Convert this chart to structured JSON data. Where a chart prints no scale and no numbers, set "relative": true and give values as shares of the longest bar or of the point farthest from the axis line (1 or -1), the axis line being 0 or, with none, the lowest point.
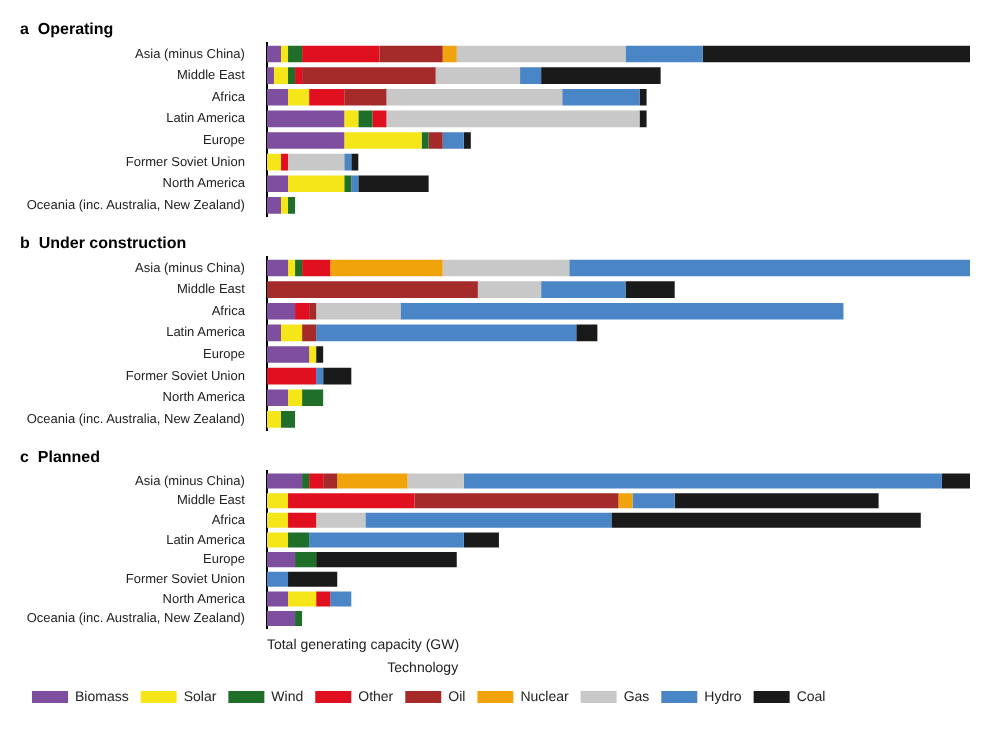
{
  "chart_data": [
    {
      "type": "bar",
      "title": "a  Operating",
      "orientation": "horizontal",
      "stacked": true,
      "relative": true,
      "legend": false,
      "categories": [
        "Asia (minus China)",
        "Middle East",
        "Africa",
        "Latin America",
        "Europe",
        "Former Soviet Union",
        "North America",
        "Oceania (inc. Australia, New Zealand)"
      ],
      "series": [
        {
          "color": "#7f4f9f",
          "values": [
            0.02,
            0.01,
            0.03,
            0.11,
            0.11,
            null,
            0.03,
            0.02
          ]
        },
        {
          "color": "#f5e61a",
          "values": [
            0.01,
            0.02,
            0.03,
            0.02,
            0.11,
            0.02,
            0.08,
            0.01
          ]
        },
        {
          "color": "#1f6e2a",
          "values": [
            0.02,
            0.01,
            null,
            0.02,
            0.01,
            null,
            0.01,
            0.01
          ]
        },
        {
          "color": "#e01020",
          "values": [
            0.11,
            0.01,
            0.05,
            0.02,
            null,
            0.01,
            null,
            null
          ]
        },
        {
          "color": "#a52a2a",
          "values": [
            0.09,
            0.19,
            0.06,
            null,
            0.02,
            null,
            null,
            null
          ]
        },
        {
          "color": "#f0a30a",
          "values": [
            0.02,
            null,
            null,
            null,
            null,
            null,
            null,
            null
          ]
        },
        {
          "color": "#c8c8c8",
          "values": [
            0.24,
            0.12,
            0.25,
            0.36,
            null,
            0.08,
            null,
            null
          ]
        },
        {
          "color": "#4a86c5",
          "values": [
            0.11,
            0.03,
            0.11,
            null,
            0.03,
            0.01,
            0.01,
            null
          ]
        },
        {
          "color": "#1a1a1a",
          "values": [
            0.38,
            0.17,
            0.01,
            0.01,
            0.01,
            0.01,
            0.1,
            null
          ]
        }
      ]
    },
    {
      "type": "bar",
      "title": "b  Under construction",
      "orientation": "horizontal",
      "stacked": true,
      "relative": true,
      "legend": false,
      "categories": [
        "Asia (minus China)",
        "Middle East",
        "Africa",
        "Latin America",
        "Europe",
        "Former Soviet Union",
        "North America",
        "Oceania (inc. Australia, New Zealand)"
      ],
      "series": [
        {
          "color": "#7f4f9f",
          "values": [
            0.03,
            null,
            0.04,
            0.02,
            0.06,
            null,
            0.03,
            null
          ]
        },
        {
          "color": "#f5e61a",
          "values": [
            0.01,
            null,
            null,
            0.03,
            0.01,
            null,
            0.02,
            0.02
          ]
        },
        {
          "color": "#1f6e2a",
          "values": [
            0.01,
            null,
            null,
            null,
            null,
            null,
            0.03,
            0.02
          ]
        },
        {
          "color": "#e01020",
          "values": [
            0.04,
            null,
            0.02,
            null,
            null,
            0.07,
            null,
            null
          ]
        },
        {
          "color": "#a52a2a",
          "values": [
            null,
            0.3,
            0.01,
            0.02,
            null,
            null,
            null,
            null
          ]
        },
        {
          "color": "#f0a30a",
          "values": [
            0.16,
            null,
            null,
            null,
            null,
            null,
            null,
            null
          ]
        },
        {
          "color": "#c8c8c8",
          "values": [
            0.18,
            0.09,
            0.12,
            null,
            null,
            null,
            null,
            null
          ]
        },
        {
          "color": "#4a86c5",
          "values": [
            0.57,
            0.12,
            0.63,
            0.37,
            null,
            0.01,
            null,
            null
          ]
        },
        {
          "color": "#1a1a1a",
          "values": [
            null,
            0.07,
            null,
            0.03,
            0.01,
            0.04,
            null,
            null
          ]
        }
      ]
    },
    {
      "type": "bar",
      "title": "c  Planned",
      "orientation": "horizontal",
      "stacked": true,
      "relative": true,
      "legend": "bottom",
      "legend_title": "Technology",
      "xlabel": "Total generating capacity (GW)",
      "categories": [
        "Asia (minus China)",
        "Middle East",
        "Africa",
        "Latin America",
        "Europe",
        "Former Soviet Union",
        "North America",
        "Oceania (inc. Australia, New Zealand)"
      ],
      "series": [
        {
          "name": "Biomass",
          "color": "#7f4f9f",
          "values": [
            0.05,
            null,
            null,
            null,
            0.04,
            null,
            0.03,
            0.04
          ]
        },
        {
          "name": "Solar",
          "color": "#f5e61a",
          "values": [
            null,
            0.03,
            0.03,
            0.03,
            null,
            null,
            0.04,
            null
          ]
        },
        {
          "name": "Wind",
          "color": "#1f6e2a",
          "values": [
            0.01,
            null,
            null,
            0.03,
            0.03,
            null,
            null,
            0.01
          ]
        },
        {
          "name": "Other",
          "color": "#e01020",
          "values": [
            0.02,
            0.18,
            0.04,
            null,
            null,
            null,
            0.02,
            null
          ]
        },
        {
          "name": "Oil",
          "color": "#a52a2a",
          "values": [
            0.02,
            0.29,
            null,
            null,
            null,
            null,
            null,
            null
          ]
        },
        {
          "name": "Nuclear",
          "color": "#f0a30a",
          "values": [
            0.1,
            0.02,
            null,
            null,
            null,
            null,
            null,
            null
          ]
        },
        {
          "name": "Gas",
          "color": "#c8c8c8",
          "values": [
            0.08,
            null,
            0.07,
            null,
            null,
            null,
            null,
            null
          ]
        },
        {
          "name": "Hydro",
          "color": "#4a86c5",
          "values": [
            0.68,
            0.06,
            0.35,
            0.22,
            null,
            0.03,
            0.03,
            null
          ]
        },
        {
          "name": "Coal",
          "color": "#1a1a1a",
          "values": [
            0.04,
            0.29,
            0.44,
            0.05,
            0.2,
            0.07,
            null,
            null
          ]
        }
      ]
    }
  ]
}
